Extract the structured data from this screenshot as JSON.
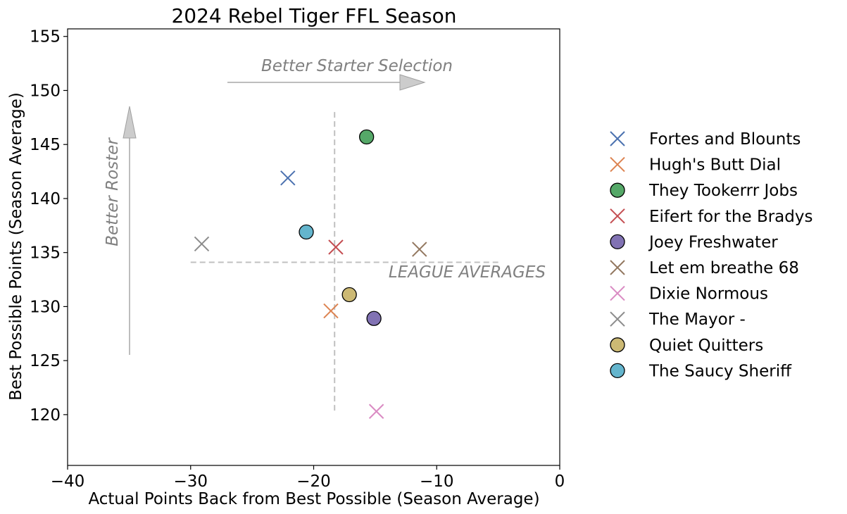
{
  "chart_data": {
    "type": "scatter",
    "title": "2024 Rebel Tiger FFL Season",
    "xlabel": "Actual Points Back from Best Possible (Season Average)",
    "ylabel": "Best Possible Points (Season Average)",
    "xlim": [
      -40,
      0
    ],
    "ylim": [
      115.3,
      155.7
    ],
    "xticks": [
      -40,
      -30,
      -20,
      -10,
      0
    ],
    "xtick_labels": [
      "−40",
      "−30",
      "−20",
      "−10",
      "0"
    ],
    "yticks": [
      120,
      125,
      130,
      135,
      140,
      145,
      150,
      155
    ],
    "ytick_labels": [
      "120",
      "125",
      "130",
      "135",
      "140",
      "145",
      "150",
      "155"
    ],
    "grid": false,
    "legend_position": "right",
    "league_average": {
      "x": -18.3,
      "y": 134.1,
      "label": "LEAGUE AVERAGES"
    },
    "annotations": {
      "x_direction": "Better Starter Selection",
      "y_direction": "Better Roster"
    },
    "series": [
      {
        "name": "Fortes and Blounts",
        "marker": "x",
        "color": "#4c72b0",
        "x": -22.1,
        "y": 141.9
      },
      {
        "name": "Hugh's  Butt Dial",
        "marker": "x",
        "color": "#dd8452",
        "x": -18.6,
        "y": 129.6
      },
      {
        "name": "They Tookerrr Jobs",
        "marker": "o",
        "color": "#55a868",
        "x": -15.7,
        "y": 145.7
      },
      {
        "name": "Eifert  for the Bradys",
        "marker": "x",
        "color": "#c44e52",
        "x": -18.2,
        "y": 135.5
      },
      {
        "name": "Joey Freshwater",
        "marker": "o",
        "color": "#8172b3",
        "x": -15.1,
        "y": 128.9
      },
      {
        "name": "Let em breathe 68",
        "marker": "x",
        "color": "#937860",
        "x": -11.4,
        "y": 135.3
      },
      {
        "name": "Dixie Normous",
        "marker": "x",
        "color": "#da8bc3",
        "x": -14.9,
        "y": 120.3
      },
      {
        "name": "The Mayor -",
        "marker": "x",
        "color": "#8c8c8c",
        "x": -29.1,
        "y": 135.8
      },
      {
        "name": "Quiet Quitters",
        "marker": "o",
        "color": "#ccb974",
        "x": -17.1,
        "y": 131.1
      },
      {
        "name": "The Saucy Sheriff",
        "marker": "o",
        "color": "#64b5cd",
        "x": -20.6,
        "y": 136.9
      }
    ]
  }
}
